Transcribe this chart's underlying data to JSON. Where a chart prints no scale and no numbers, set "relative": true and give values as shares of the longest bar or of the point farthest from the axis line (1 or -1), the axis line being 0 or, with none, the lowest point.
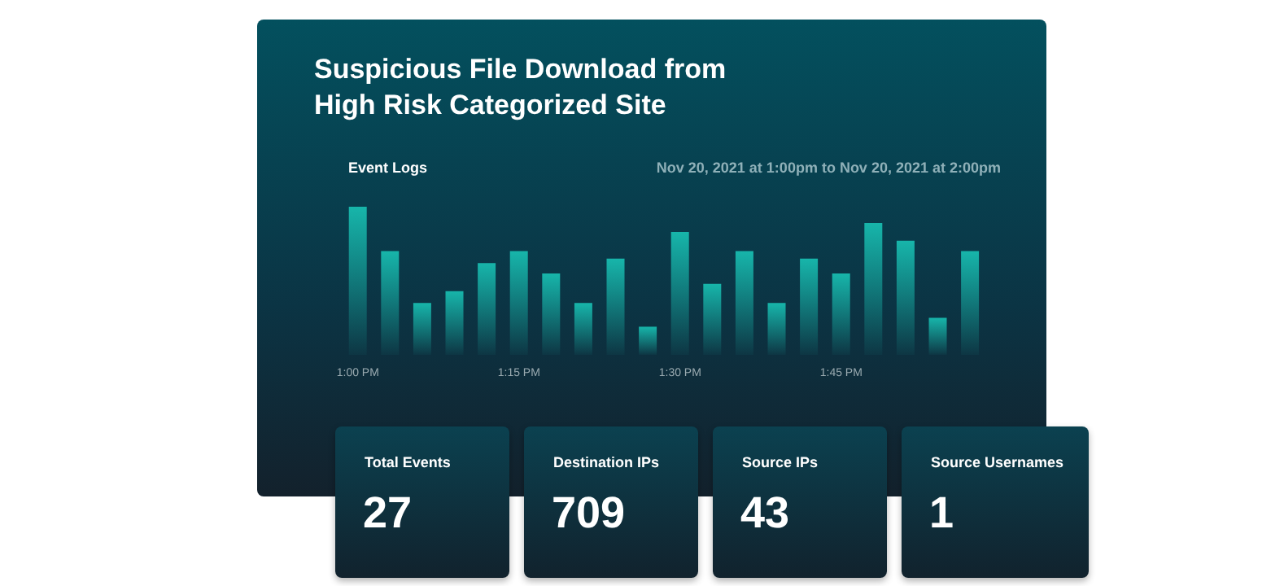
{
  "chart_data": [
    {
      "type": "bar",
      "title": "Suspicious File Download from High Risk Categorized Site",
      "subtitle": "Event Logs",
      "annotations": [
        "Nov 20, 2021 at 1:00pm to Nov 20, 2021 at 2:00pm"
      ],
      "relative": true,
      "categories": [
        "1:00 PM",
        null,
        null,
        null,
        null,
        "1:15 PM",
        null,
        null,
        null,
        null,
        "1:30 PM",
        null,
        null,
        null,
        null,
        "1:45 PM",
        null,
        null,
        null,
        null
      ],
      "values": [
        1,
        0.7,
        0.35,
        0.43,
        0.62,
        0.7,
        0.55,
        0.35,
        0.65,
        0.19,
        0.83,
        0.48,
        0.7,
        0.35,
        0.65,
        0.55,
        0.89,
        0.77,
        0.25,
        0.7
      ],
      "color": "#17b5aa"
    },
    {
      "type": "other",
      "categories": [
        "Total Events",
        "Destination IPs",
        "Source IPs",
        "Source Usernames"
      ],
      "values": [
        27,
        709,
        43,
        1
      ],
      "data_labels": true
    }
  ]
}
